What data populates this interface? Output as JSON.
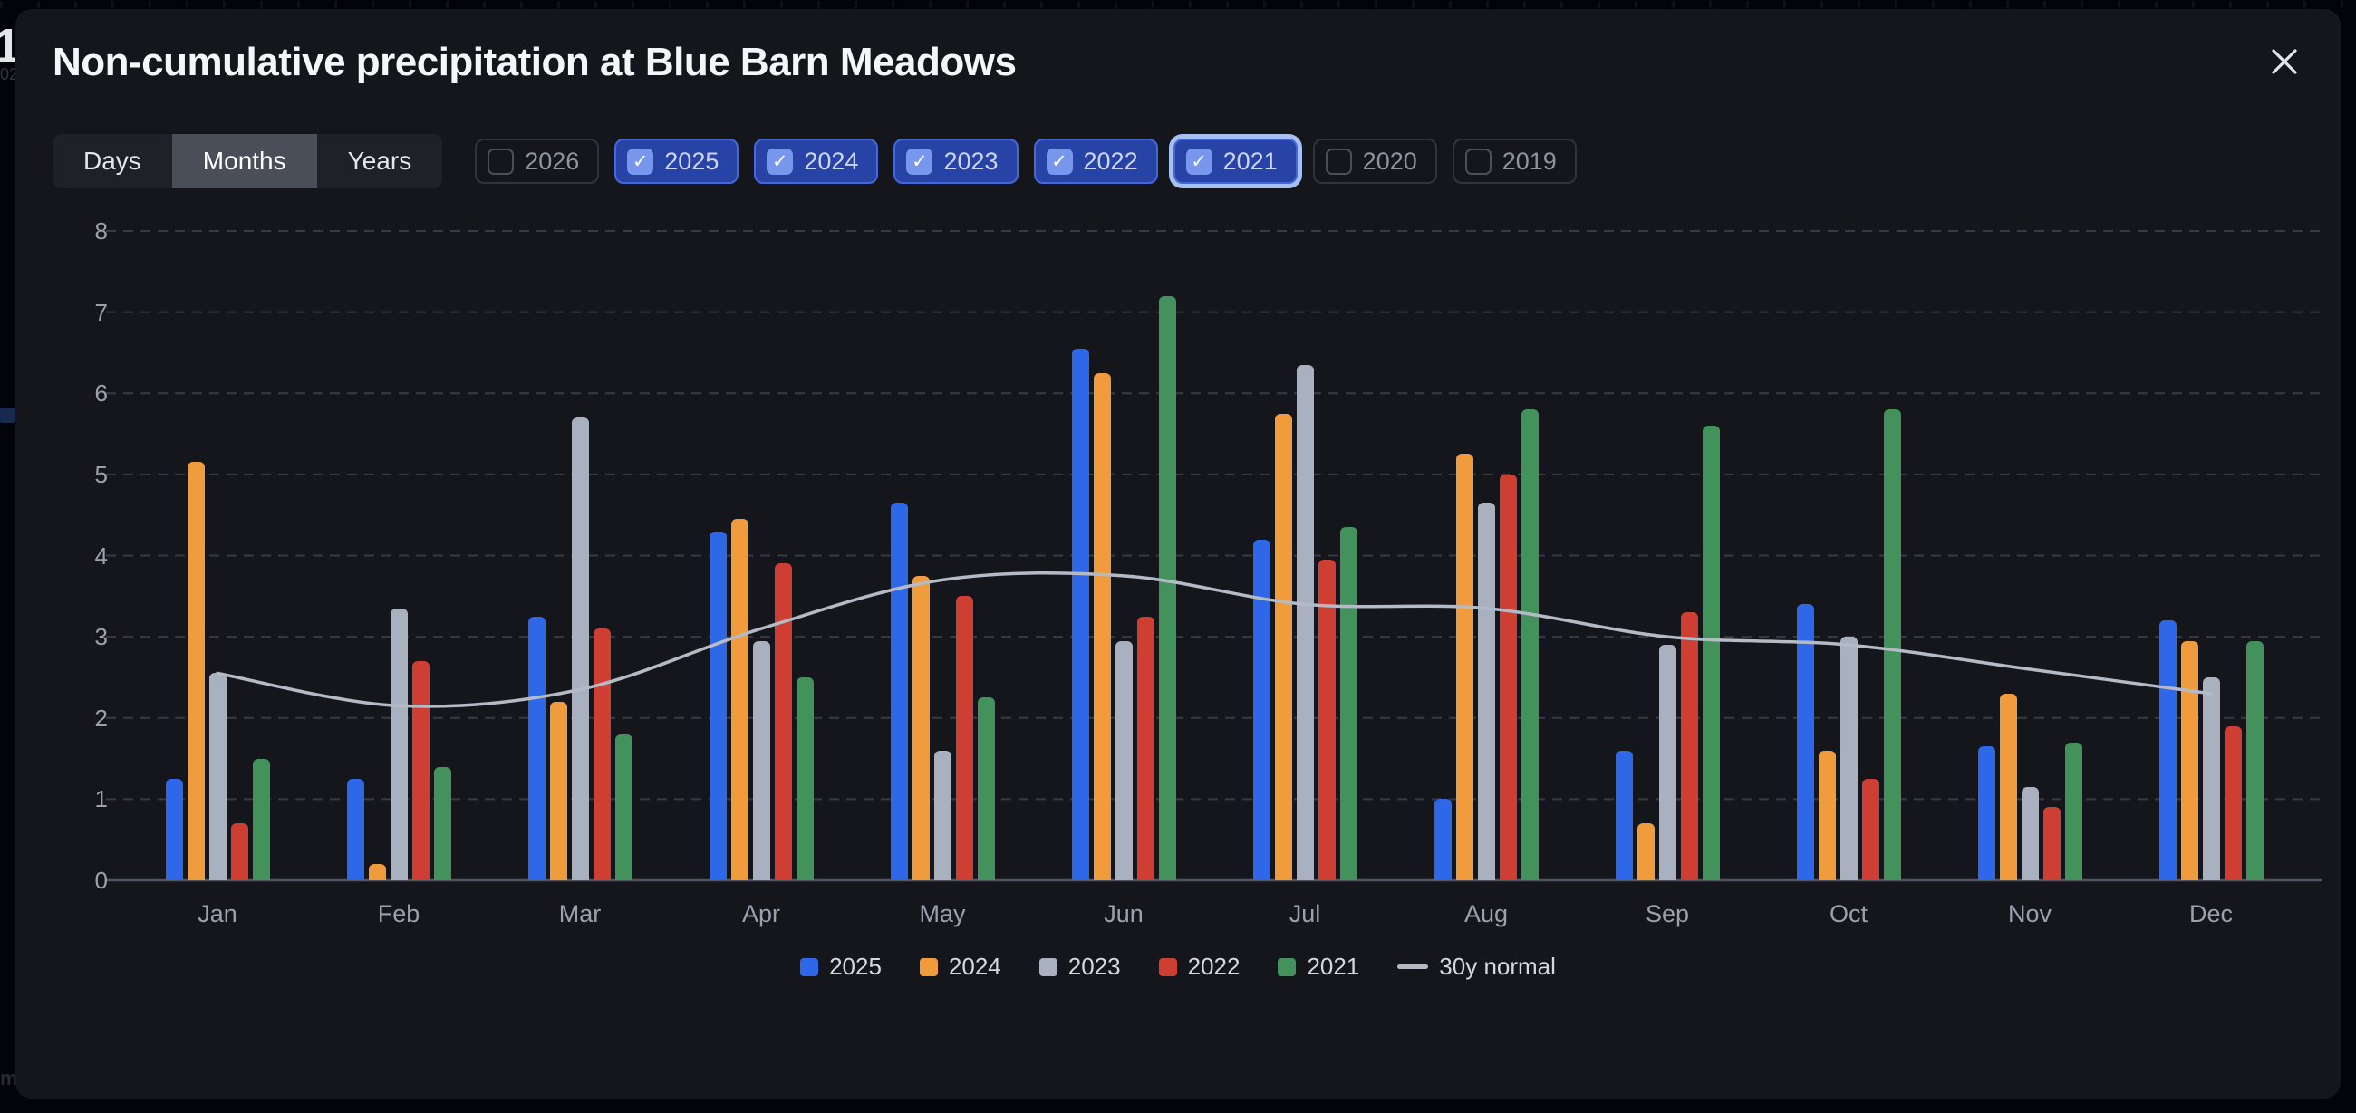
{
  "background": {
    "left_edge_glyph": "1",
    "left_edge_subtext": "02"
  },
  "modal": {
    "title": "Non-cumulative precipitation at Blue Barn Meadows"
  },
  "icons": {
    "close": "x",
    "checkbox_check": "✓"
  },
  "tabs": {
    "items": [
      {
        "label": "Days",
        "selected": false
      },
      {
        "label": "Months",
        "selected": true
      },
      {
        "label": "Years",
        "selected": false
      }
    ]
  },
  "year_filters": {
    "items": [
      {
        "label": "2026",
        "checked": false,
        "focused": false
      },
      {
        "label": "2025",
        "checked": true,
        "focused": false
      },
      {
        "label": "2024",
        "checked": true,
        "focused": false
      },
      {
        "label": "2023",
        "checked": true,
        "focused": false
      },
      {
        "label": "2022",
        "checked": true,
        "focused": false
      },
      {
        "label": "2021",
        "checked": true,
        "focused": true
      },
      {
        "label": "2020",
        "checked": false,
        "focused": false
      },
      {
        "label": "2019",
        "checked": false,
        "focused": false
      }
    ]
  },
  "colors": {
    "modal_bg": "#14161c",
    "checked_chip_bg": "#2843a6",
    "checked_chip_border": "#4467dc",
    "focus_ring": "#a7c0ef",
    "grid_dashed": "#363a44",
    "axis_line": "#50555f",
    "tick_text": "#9ba1ac"
  },
  "chart_data": {
    "type": "bar",
    "title": "Non-cumulative precipitation at Blue Barn Meadows",
    "categories": [
      "Jan",
      "Feb",
      "Mar",
      "Apr",
      "May",
      "Jun",
      "Jul",
      "Aug",
      "Sep",
      "Oct",
      "Nov",
      "Dec"
    ],
    "series": [
      {
        "name": "2025",
        "color": "#2e68e8",
        "values": [
          1.25,
          1.25,
          3.25,
          4.3,
          4.65,
          6.55,
          4.2,
          1.0,
          1.6,
          3.4,
          1.65,
          3.2
        ]
      },
      {
        "name": "2024",
        "color": "#f09c3c",
        "values": [
          5.15,
          0.2,
          2.2,
          4.45,
          3.75,
          6.25,
          5.75,
          5.25,
          0.7,
          1.6,
          2.3,
          2.95
        ]
      },
      {
        "name": "2023",
        "color": "#a9b0bf",
        "values": [
          2.55,
          3.35,
          5.7,
          2.95,
          1.6,
          2.95,
          6.35,
          4.65,
          2.9,
          3.0,
          1.15,
          2.5
        ]
      },
      {
        "name": "2022",
        "color": "#ce3e33",
        "values": [
          0.7,
          2.7,
          3.1,
          3.9,
          3.5,
          3.25,
          3.95,
          5.0,
          3.3,
          1.25,
          0.9,
          1.9
        ]
      },
      {
        "name": "2021",
        "color": "#43925c",
        "values": [
          1.5,
          1.4,
          1.8,
          2.5,
          2.25,
          7.2,
          4.35,
          5.8,
          5.6,
          5.8,
          1.7,
          2.95
        ]
      }
    ],
    "line_series": [
      {
        "name": "30y normal",
        "color": "#b4bbc7",
        "values": [
          2.55,
          2.15,
          2.35,
          3.1,
          3.7,
          3.75,
          3.4,
          3.35,
          3.0,
          2.9,
          2.6,
          2.3
        ]
      }
    ],
    "ylim": [
      0,
      8
    ],
    "yticks": [
      0,
      1,
      2,
      3,
      4,
      5,
      6,
      7,
      8
    ],
    "xlabel": "",
    "ylabel": "",
    "grid": "horizontal-dashed",
    "legend_position": "bottom",
    "legend": [
      "2025",
      "2024",
      "2023",
      "2022",
      "2021",
      "30y normal"
    ]
  }
}
